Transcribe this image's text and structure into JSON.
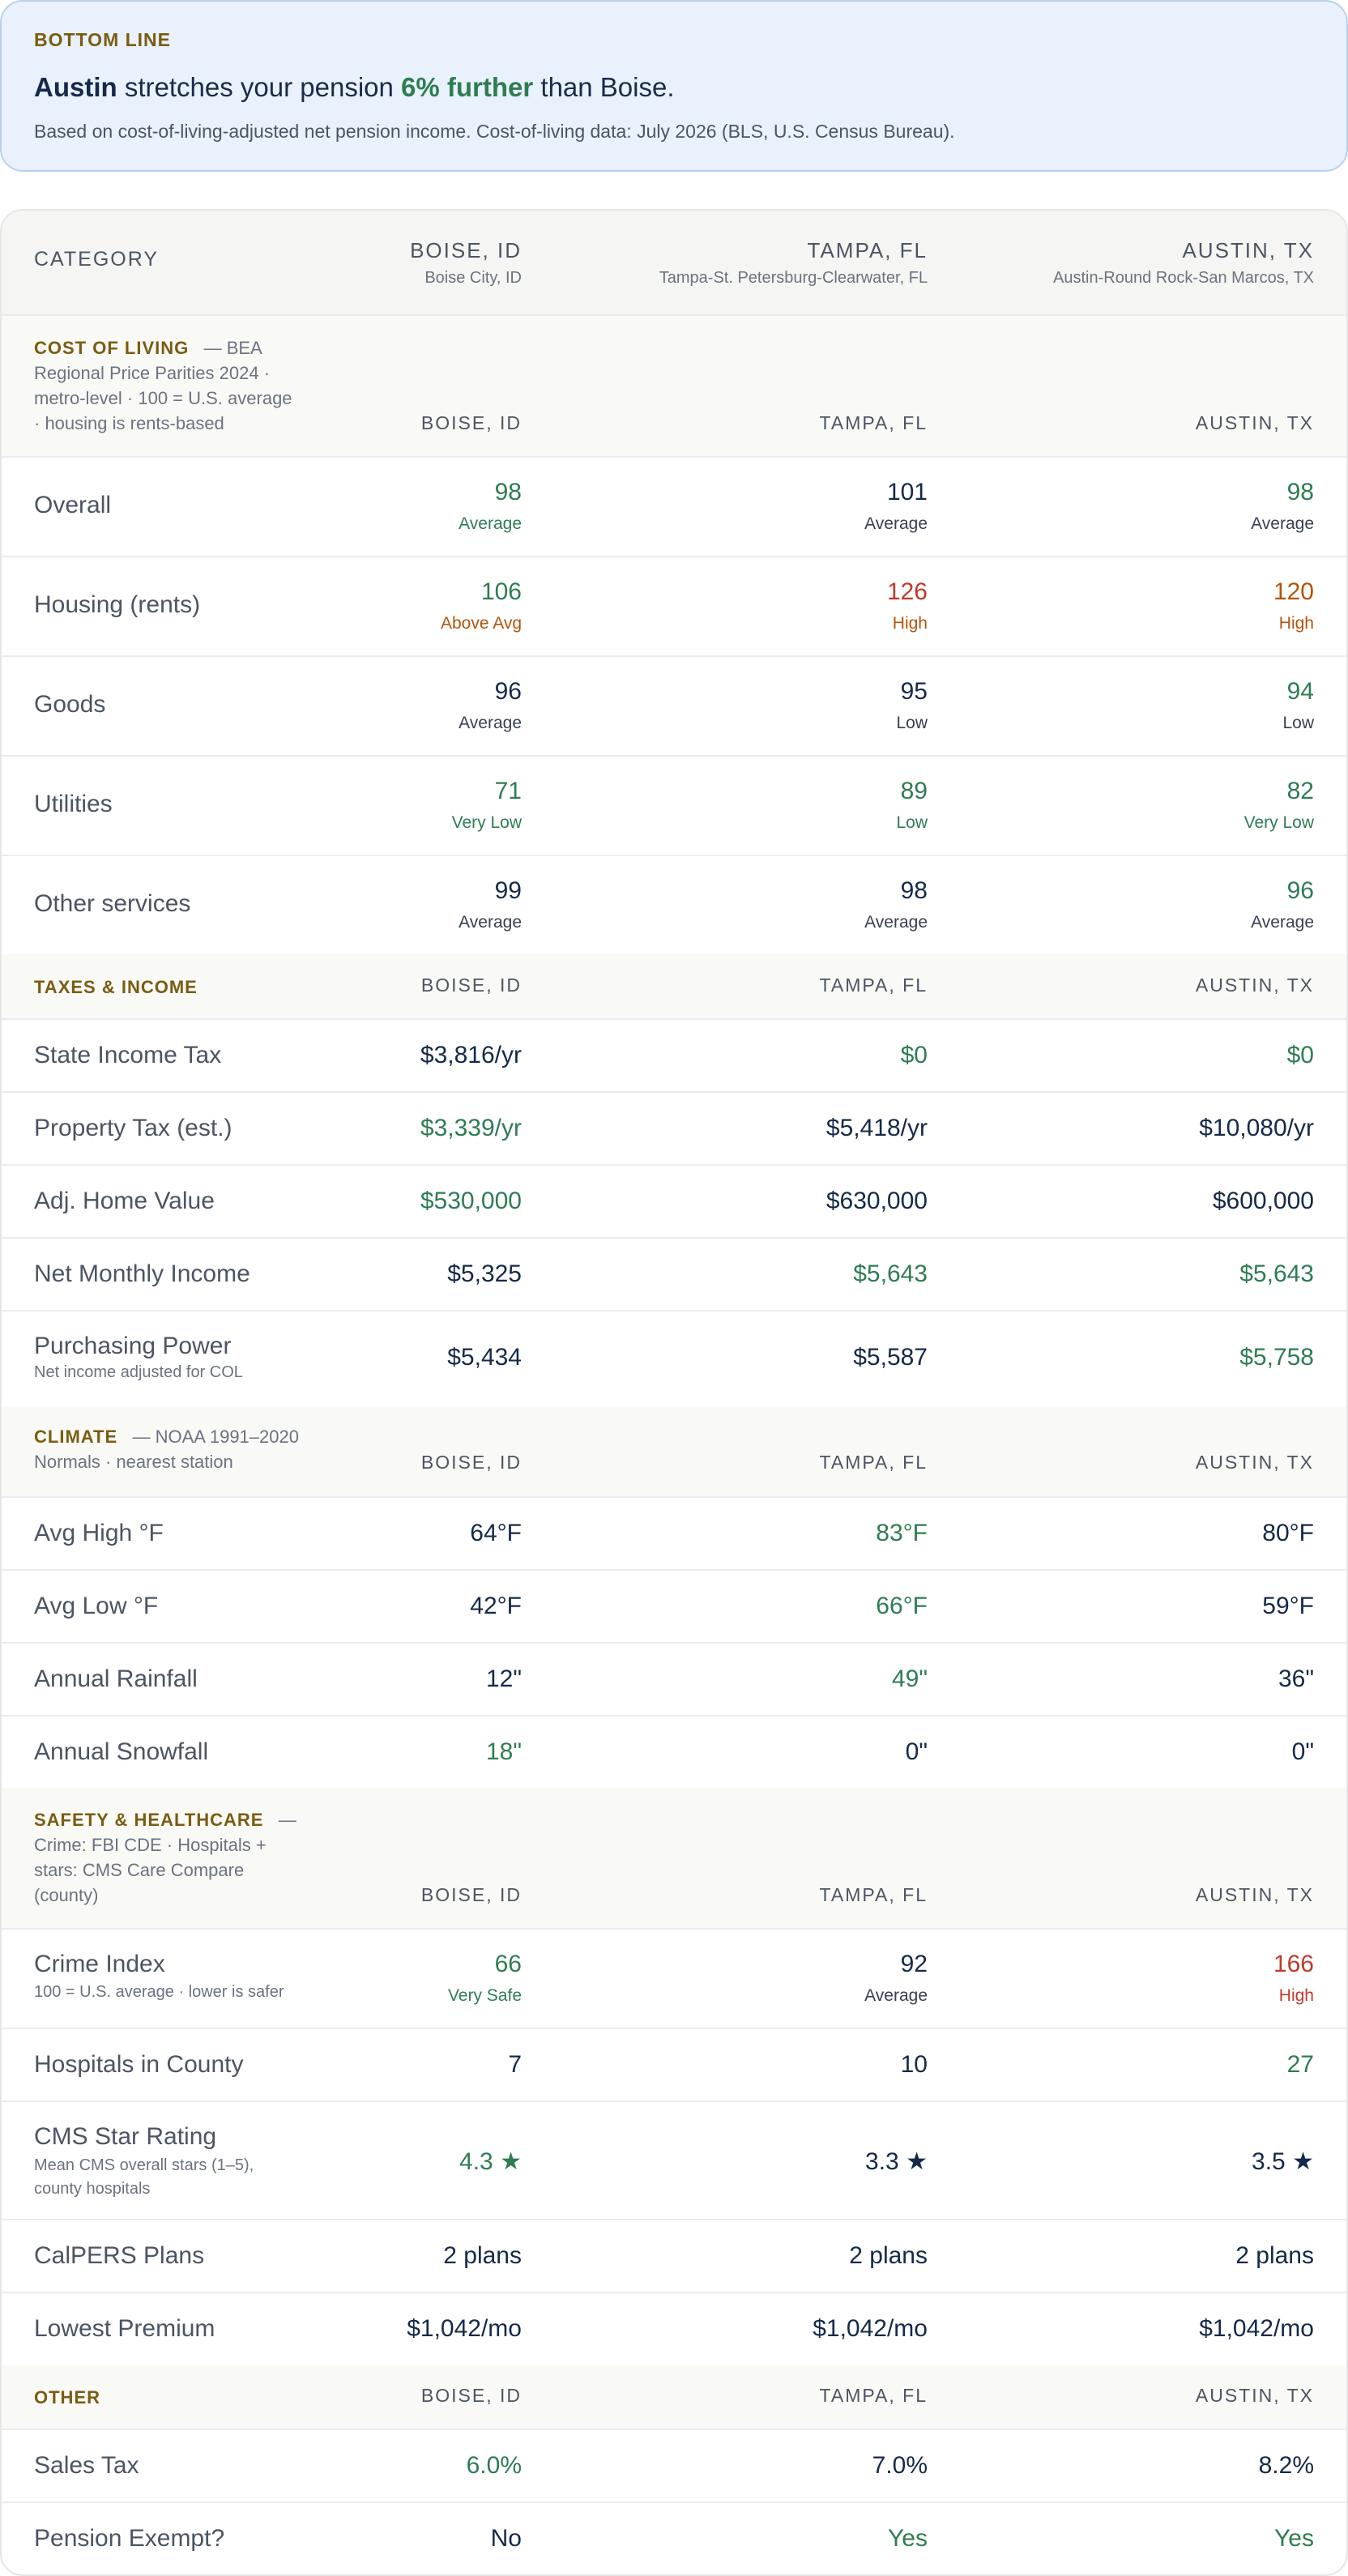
{
  "bottom_line": {
    "kicker": "BOTTOM LINE",
    "city": "Austin",
    "mid": " stretches your pension ",
    "pct": "6% further",
    "end": " than Boise.",
    "subtext": "Based on cost-of-living-adjusted net pension income. Cost-of-living data: July 2026 (BLS, U.S. Census Bureau)."
  },
  "header": {
    "category": "CATEGORY",
    "cities": [
      {
        "name": "BOISE, ID",
        "metro": "Boise City, ID"
      },
      {
        "name": "TAMPA, FL",
        "metro": "Tampa-St. Petersburg-Clearwater, FL"
      },
      {
        "name": "AUSTIN, TX",
        "metro": "Austin-Round Rock-San Marcos, TX"
      }
    ]
  },
  "section_cities": [
    "BOISE, ID",
    "TAMPA, FL",
    "AUSTIN, TX"
  ],
  "sections": {
    "cost_of_living": {
      "title": "COST OF LIVING",
      "lines": [
        "— BEA",
        "Regional Price Parities 2024 ·",
        "metro-level · 100 = U.S. average",
        "· housing is rents-based"
      ]
    },
    "taxes_income": {
      "title": "TAXES & INCOME"
    },
    "climate": {
      "title": "CLIMATE",
      "lines": [
        "— NOAA 1991–2020",
        "Normals · nearest station"
      ]
    },
    "safety": {
      "title": "SAFETY & HEALTHCARE",
      "lines": [
        "—",
        "Crime: FBI CDE · Hospitals +",
        "stars: CMS Care Compare",
        "(county)"
      ]
    },
    "other": {
      "title": "OTHER"
    }
  },
  "rows": {
    "overall": {
      "label": "Overall",
      "values": [
        "98",
        "101",
        "98"
      ],
      "tiers": [
        "Average",
        "Average",
        "Average"
      ]
    },
    "housing": {
      "label": "Housing (rents)",
      "values": [
        "106",
        "126",
        "120"
      ],
      "tiers": [
        "Above Avg",
        "High",
        "High"
      ]
    },
    "goods": {
      "label": "Goods",
      "values": [
        "96",
        "95",
        "94"
      ],
      "tiers": [
        "Average",
        "Low",
        "Low"
      ]
    },
    "utilities": {
      "label": "Utilities",
      "values": [
        "71",
        "89",
        "82"
      ],
      "tiers": [
        "Very Low",
        "Low",
        "Very Low"
      ]
    },
    "other_services": {
      "label": "Other services",
      "values": [
        "99",
        "98",
        "96"
      ],
      "tiers": [
        "Average",
        "Average",
        "Average"
      ]
    },
    "state_income_tax": {
      "label": "State Income Tax",
      "values": [
        "$3,816/yr",
        "$0",
        "$0"
      ]
    },
    "property_tax": {
      "label": "Property Tax (est.)",
      "values": [
        "$3,339/yr",
        "$5,418/yr",
        "$10,080/yr"
      ]
    },
    "home_value": {
      "label": "Adj. Home Value",
      "values": [
        "$530,000",
        "$630,000",
        "$600,000"
      ]
    },
    "net_income": {
      "label": "Net Monthly Income",
      "values": [
        "$5,325",
        "$5,643",
        "$5,643"
      ]
    },
    "purchasing_power": {
      "label": "Purchasing Power",
      "sublabel": "Net income adjusted for COL",
      "values": [
        "$5,434",
        "$5,587",
        "$5,758"
      ]
    },
    "avg_high": {
      "label": "Avg High °F",
      "values": [
        "64°F",
        "83°F",
        "80°F"
      ]
    },
    "avg_low": {
      "label": "Avg Low °F",
      "values": [
        "42°F",
        "66°F",
        "59°F"
      ]
    },
    "rainfall": {
      "label": "Annual Rainfall",
      "values": [
        "12\"",
        "49\"",
        "36\""
      ]
    },
    "snowfall": {
      "label": "Annual Snowfall",
      "values": [
        "18\"",
        "0\"",
        "0\""
      ]
    },
    "crime": {
      "label": "Crime Index",
      "sublabel": "100 = U.S. average · lower is safer",
      "values": [
        "66",
        "92",
        "166"
      ],
      "tiers": [
        "Very Safe",
        "Average",
        "High"
      ]
    },
    "hospitals": {
      "label": "Hospitals in County",
      "values": [
        "7",
        "10",
        "27"
      ]
    },
    "cms_stars": {
      "label": "CMS Star Rating",
      "sublabel_lines": [
        "Mean CMS overall stars (1–5),",
        "county hospitals"
      ],
      "values": [
        "4.3",
        "3.3",
        "3.5"
      ],
      "star_glyph": "★"
    },
    "calpers": {
      "label": "CalPERS Plans",
      "values": [
        "2 plans",
        "2 plans",
        "2 plans"
      ]
    },
    "premium": {
      "label": "Lowest Premium",
      "values": [
        "$1,042/mo",
        "$1,042/mo",
        "$1,042/mo"
      ]
    },
    "sales_tax": {
      "label": "Sales Tax",
      "values": [
        "6.0%",
        "7.0%",
        "8.2%"
      ]
    },
    "pension_exempt": {
      "label": "Pension Exempt?",
      "values": [
        "No",
        "Yes",
        "Yes"
      ]
    }
  },
  "colors": {
    "good": "#2e7d52",
    "warn": "#b45309",
    "bad": "#c0392b",
    "neutral": "#16294a",
    "section_accent": "#7a5c12",
    "banner_bg": "#e9f1fc"
  }
}
